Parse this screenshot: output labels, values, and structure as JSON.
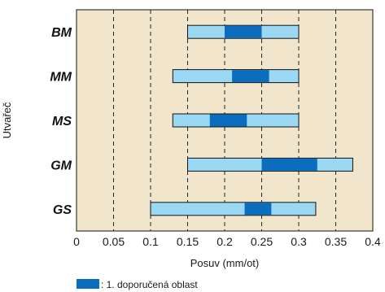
{
  "chart_data": {
    "type": "bar",
    "orientation": "horizontal-range",
    "xlabel": "Posuv (mm/ot)",
    "ylabel": "Utvařeč",
    "xlim": [
      0,
      0.4
    ],
    "xticks": [
      0,
      0.05,
      0.1,
      0.15,
      0.2,
      0.25,
      0.3,
      0.35,
      0.4
    ],
    "xtick_labels": [
      "0",
      "0.05",
      "0.1",
      "0.15",
      "0.2",
      "0.25",
      "0.3",
      "0.35",
      "0.4"
    ],
    "grid": "vertical dashed",
    "categories": [
      "BM",
      "MM",
      "MS",
      "GM",
      "GS"
    ],
    "series": [
      {
        "name": "",
        "ranges": [
          [
            0.15,
            0.3
          ],
          [
            0.13,
            0.3
          ],
          [
            0.13,
            0.3
          ],
          [
            0.15,
            0.373
          ],
          [
            0.1,
            0.323
          ]
        ]
      },
      {
        "name": "1. doporučená oblast",
        "ranges": [
          [
            0.2,
            0.25
          ],
          [
            0.21,
            0.26
          ],
          [
            0.18,
            0.23
          ],
          [
            0.25,
            0.325
          ],
          [
            0.227,
            0.263
          ]
        ]
      }
    ],
    "legend": {
      "position": "bottom-left",
      "entries": [
        {
          "label": ": 1. doporučená oblast",
          "color": "#0a6dbd"
        }
      ]
    },
    "colors": {
      "background": "#f1e6cc",
      "range": "#9ad8f4",
      "recommended": "#0a6dbd",
      "outline": "#111111"
    }
  }
}
